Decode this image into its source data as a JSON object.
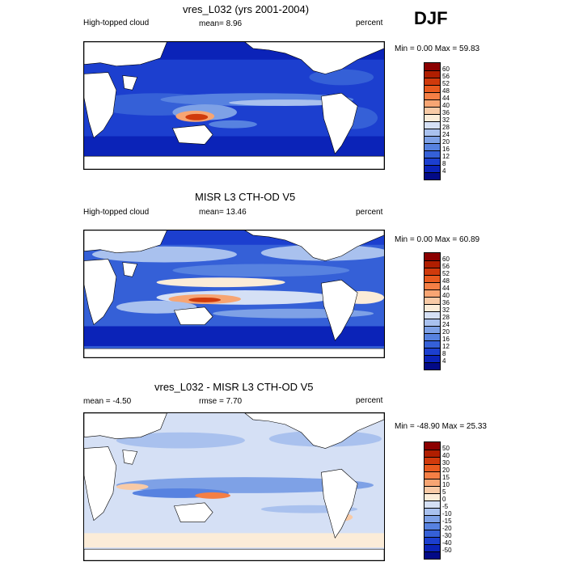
{
  "season": "DJF",
  "panels": [
    {
      "title": "vres_L032 (yrs 2001-2004)",
      "left_label": "High-topped cloud",
      "center_label": "mean=  8.96",
      "right_label": "percent",
      "minmax": "Min =   0.00 Max =   59.83",
      "colorbar": {
        "labels": [
          "60",
          "56",
          "52",
          "48",
          "44",
          "40",
          "36",
          "32",
          "28",
          "24",
          "20",
          "16",
          "12",
          "8",
          "4"
        ],
        "colors": [
          "#8b0000",
          "#b01e00",
          "#d03a0c",
          "#e85a1f",
          "#f57f45",
          "#f7a573",
          "#f8caa6",
          "#fbecd8",
          "#d5e0f5",
          "#a9c1ee",
          "#7ea1e6",
          "#5782e0",
          "#3560d7",
          "#1c3fcf",
          "#0b23b8",
          "#020a87"
        ]
      }
    },
    {
      "title": "MISR L3 CTH-OD V5",
      "left_label": "High-topped cloud",
      "center_label": "mean=  13.46",
      "right_label": "percent",
      "minmax": "Min =   0.00 Max =   60.89",
      "colorbar": {
        "labels": [
          "60",
          "56",
          "52",
          "48",
          "44",
          "40",
          "36",
          "32",
          "28",
          "24",
          "20",
          "16",
          "12",
          "8",
          "4"
        ],
        "colors": [
          "#8b0000",
          "#b01e00",
          "#d03a0c",
          "#e85a1f",
          "#f57f45",
          "#f7a573",
          "#f8caa6",
          "#fbecd8",
          "#d5e0f5",
          "#a9c1ee",
          "#7ea1e6",
          "#5782e0",
          "#3560d7",
          "#1c3fcf",
          "#0b23b8",
          "#020a87"
        ]
      }
    },
    {
      "title": "vres_L032 - MISR L3 CTH-OD V5",
      "left_label": "mean =  -4.50",
      "center_label": "rmse =   7.70",
      "right_label": "percent",
      "minmax": "Min =  -48.90 Max =  25.33",
      "colorbar": {
        "labels": [
          "50",
          "40",
          "30",
          "20",
          "15",
          "10",
          "5",
          "0",
          "-5",
          "-10",
          "-15",
          "-20",
          "-30",
          "-40",
          "-50"
        ],
        "colors": [
          "#8b0000",
          "#b01e00",
          "#d03a0c",
          "#e85a1f",
          "#f57f45",
          "#f7a573",
          "#f8caa6",
          "#fbecd8",
          "#d5e0f5",
          "#a9c1ee",
          "#7ea1e6",
          "#5782e0",
          "#3560d7",
          "#1c3fcf",
          "#0b23b8",
          "#020a87"
        ]
      }
    }
  ]
}
